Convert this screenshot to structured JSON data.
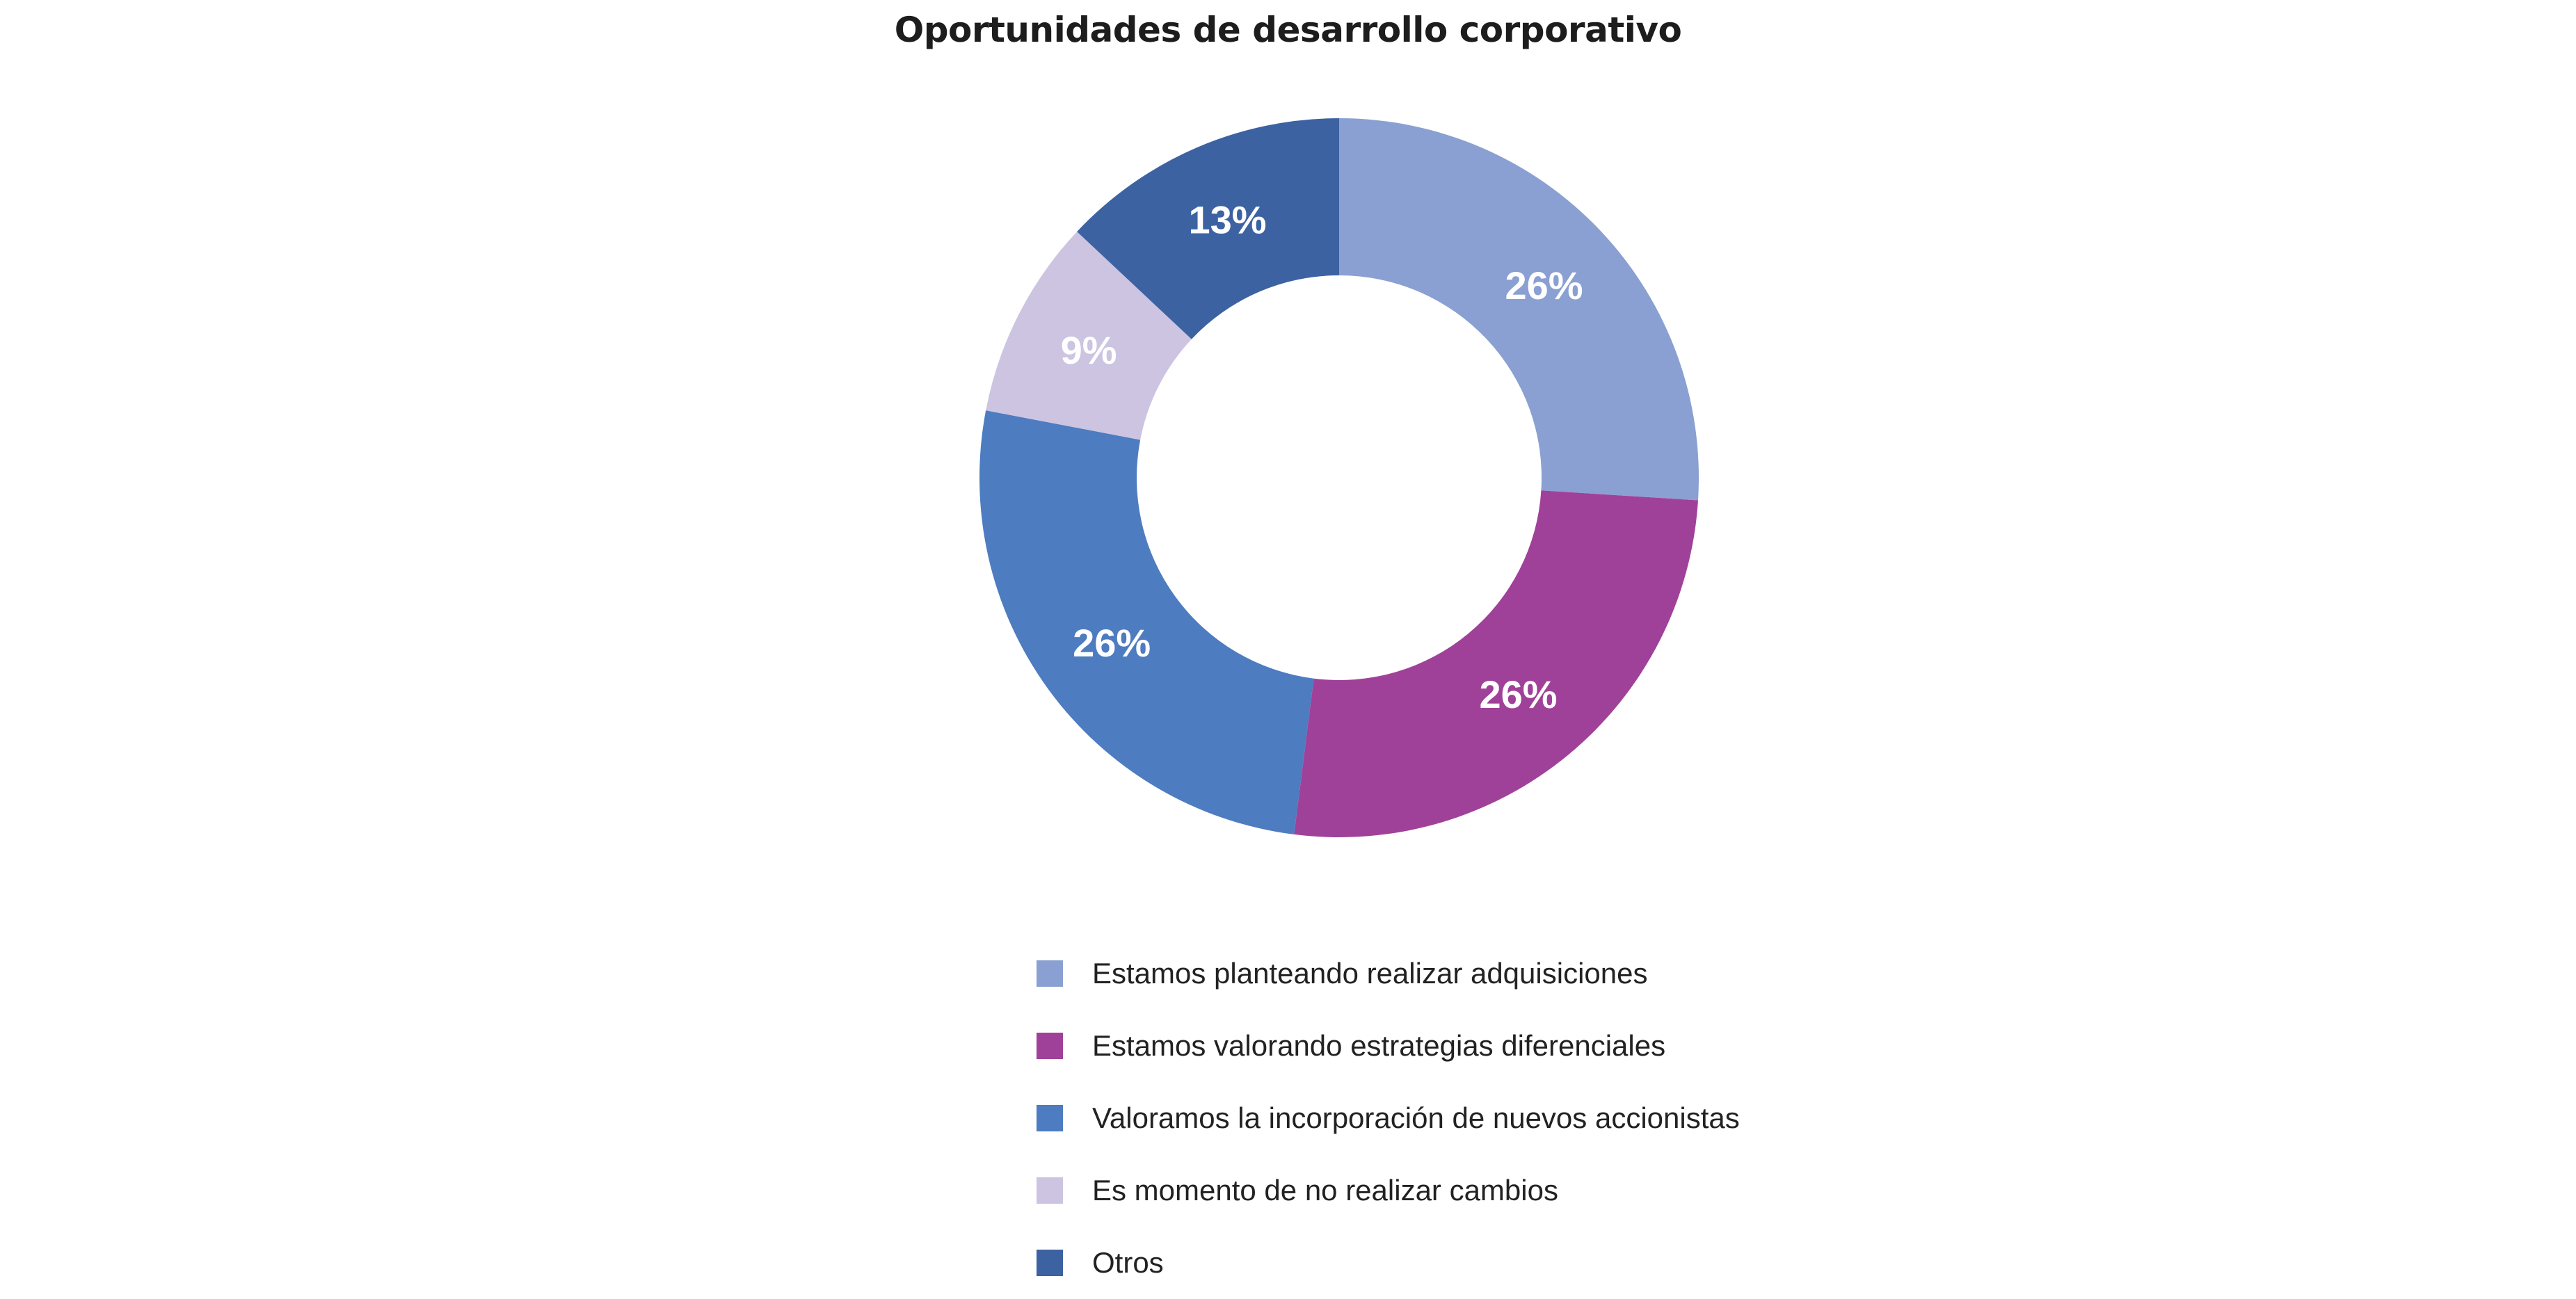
{
  "chart_data": {
    "type": "pie",
    "donut": true,
    "title": "Oportunidades de desarrollo corporativo",
    "value_format": "percent",
    "legend_position": "bottom",
    "slices": [
      {
        "name": "Estamos planteando realizar adquisiciones",
        "value": 26,
        "label": "26%",
        "color": "#8aa0d2"
      },
      {
        "name": "Estamos valorando estrategias diferenciales",
        "value": 26,
        "label": "26%",
        "color": "#a04199"
      },
      {
        "name": "Valoramos la incorporación de nuevos accionistas",
        "value": 26,
        "label": "26%",
        "color": "#4d7cc0"
      },
      {
        "name": "Es momento de no realizar cambios",
        "value": 9,
        "label": "9%",
        "color": "#cdc4e2"
      },
      {
        "name": "Otros",
        "value": 13,
        "label": "13%",
        "color": "#3c62a2"
      }
    ]
  }
}
